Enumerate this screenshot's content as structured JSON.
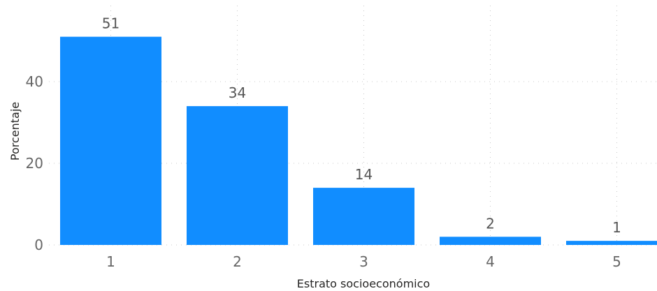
{
  "chart_data": {
    "type": "bar",
    "categories": [
      "1",
      "2",
      "3",
      "4",
      "5"
    ],
    "values": [
      51,
      34,
      14,
      2,
      1
    ],
    "data_labels": [
      "51",
      "34",
      "14",
      "2",
      "1"
    ],
    "xlabel": "Estrato socioeconómico",
    "ylabel": "Porcentaje",
    "ylim": [
      0,
      60
    ],
    "yticks": [
      0,
      20,
      40
    ],
    "grid": true,
    "bar_color": "#118dff"
  }
}
